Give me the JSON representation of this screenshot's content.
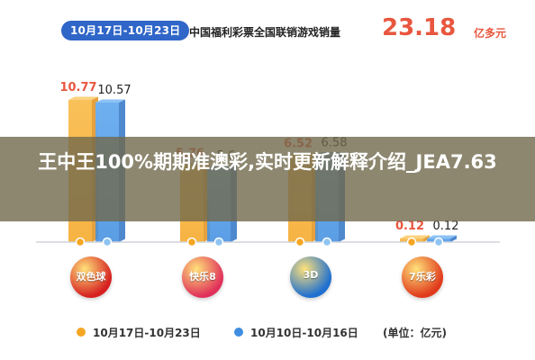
{
  "header": {
    "date_range": "10月17日-10月23日",
    "title": "中国福利彩票全国联销游戏销量",
    "total_value": "23.18",
    "total_unit": "亿多元"
  },
  "overlay": {
    "headline": "王中王100%期期准澳彩,实时更新解释介绍_JEA7.63"
  },
  "chart_data": {
    "type": "bar",
    "categories": [
      "双色球",
      "快乐8",
      "3D",
      "七乐彩"
    ],
    "series": [
      {
        "name": "10月17日-10月23日",
        "values": [
          10.77,
          5.76,
          6.52,
          0.12
        ],
        "labels": [
          "10.77",
          "5.76",
          "6.52",
          "0.12"
        ],
        "color": "#f5a623"
      },
      {
        "name": "10月10日-10月16日",
        "values": [
          10.57,
          5.6,
          6.58,
          0.12
        ],
        "labels": [
          "10.57",
          "5.6",
          "6.58",
          "0.12"
        ],
        "color": "#3e8de0"
      }
    ],
    "unit": "(单位：亿元)",
    "ylim": [
      0,
      12
    ],
    "grid": false,
    "legend_position": "bottom"
  },
  "logos": [
    {
      "text": "双色球",
      "color": "#d62020"
    },
    {
      "text": "快乐8",
      "color": "#e0305a"
    },
    {
      "text": "3D",
      "color": "#1f6fd0"
    },
    {
      "text": "7乐彩",
      "color": "#e03a1c"
    }
  ],
  "colors": {
    "current": "#f5a623",
    "previous": "#3e8de0",
    "accent": "#e8563e",
    "pill": "#2f66c8"
  }
}
